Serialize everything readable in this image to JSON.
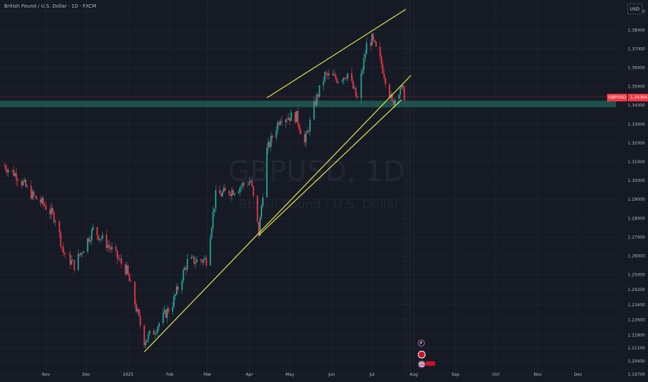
{
  "header": {
    "title": "British Pound / U.S. Dollar · 1D · FXCM"
  },
  "currency_button": "USD",
  "price_tag": {
    "symbol": "GBPUSD",
    "value": "1.34364"
  },
  "watermark": {
    "symbol": "GBPUSD, 1D",
    "name": "British Pound / U.S. Dollar"
  },
  "event_icons": [
    "lightning-icon",
    "uk-flag-icon",
    "us-flag-icon"
  ],
  "colors": {
    "background": "#161a25",
    "up": "#26a69a",
    "down": "#f23645",
    "trendline": "#e8e84a",
    "zone": "#1e5e55"
  },
  "chart_data": {
    "type": "candlestick",
    "symbol": "GBPUSD",
    "timeframe": "1D",
    "ylim": [
      1.193,
      1.396
    ],
    "y_ticks": [
      "1.39000",
      "1.38000",
      "1.37000",
      "1.36000",
      "1.35000",
      "1.34000",
      "1.33000",
      "1.32000",
      "1.31000",
      "1.30000",
      "1.29000",
      "1.28000",
      "1.27000",
      "1.26000",
      "1.25000",
      "1.24200",
      "1.23400",
      "1.22600",
      "1.21800",
      "1.21100",
      "1.20400",
      "1.19700"
    ],
    "x_ticks": [
      "Nov",
      "Dec",
      "2025",
      "Feb",
      "Mar",
      "Apr",
      "May",
      "Jun",
      "Jul",
      "Aug",
      "Sep",
      "Oct",
      "Nov",
      "Dec"
    ],
    "price_series": [
      [
        "2024-10-01",
        1.308
      ],
      [
        "2024-10-10",
        1.303
      ],
      [
        "2024-10-22",
        1.292
      ],
      [
        "2024-10-31",
        1.287
      ],
      [
        "2024-11-08",
        1.28
      ],
      [
        "2024-11-14",
        1.262
      ],
      [
        "2024-11-22",
        1.255
      ],
      [
        "2024-12-06",
        1.274
      ],
      [
        "2024-12-18",
        1.265
      ],
      [
        "2024-12-31",
        1.252
      ],
      [
        "2025-01-13",
        1.215
      ],
      [
        "2025-01-20",
        1.22
      ],
      [
        "2025-02-03",
        1.235
      ],
      [
        "2025-02-14",
        1.257
      ],
      [
        "2025-02-28",
        1.258
      ],
      [
        "2025-03-07",
        1.292
      ],
      [
        "2025-03-20",
        1.295
      ],
      [
        "2025-04-02",
        1.3
      ],
      [
        "2025-04-08",
        1.272
      ],
      [
        "2025-04-14",
        1.316
      ],
      [
        "2025-04-24",
        1.334
      ],
      [
        "2025-05-06",
        1.334
      ],
      [
        "2025-05-12",
        1.32
      ],
      [
        "2025-05-20",
        1.342
      ],
      [
        "2025-05-27",
        1.356
      ],
      [
        "2025-06-06",
        1.354
      ],
      [
        "2025-06-13",
        1.357
      ],
      [
        "2025-06-20",
        1.343
      ],
      [
        "2025-06-27",
        1.372
      ],
      [
        "2025-07-01",
        1.375
      ],
      [
        "2025-07-08",
        1.362
      ],
      [
        "2025-07-16",
        1.341
      ],
      [
        "2025-07-22",
        1.35
      ],
      [
        "2025-07-26",
        1.34364
      ]
    ],
    "trendlines": [
      {
        "name": "rising-wedge-support",
        "from": [
          "2025-01-13",
          1.209
        ],
        "to": [
          "2025-07-30",
          1.356
        ]
      },
      {
        "name": "support-from-april-low",
        "from": [
          "2025-04-08",
          1.271
        ],
        "to": [
          "2025-07-23",
          1.343
        ]
      },
      {
        "name": "rising-wedge-resistance",
        "from": [
          "2025-04-14",
          1.344
        ],
        "to": [
          "2025-07-26",
          1.391
        ]
      }
    ],
    "zone": {
      "top": 1.3425,
      "bottom": 1.339
    },
    "last_price": 1.34364,
    "current_date": "2025-07-26",
    "grid": true
  }
}
